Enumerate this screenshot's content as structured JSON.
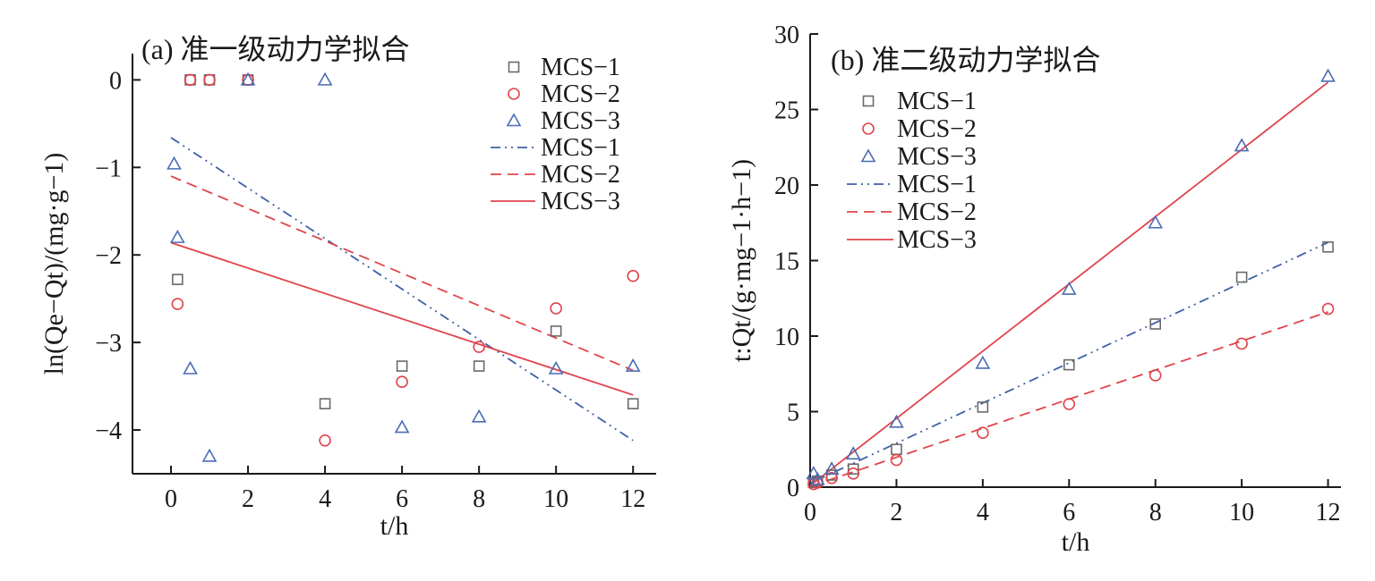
{
  "colors": {
    "MCS-1": "#6a6a6a",
    "MCS-2": "#e0444c",
    "MCS-3": "#4a6cb4",
    "fit-MCS-1": "#3f5fa6",
    "fit-MCS-2": "#e0444c",
    "fit-MCS-3": "#e0444c"
  },
  "chart_data": [
    {
      "type": "scatter",
      "title": "(a) 准一级动力学拟合",
      "xlabel": "t/h",
      "ylabel": "ln(Qe−Qt)/(mg·g−1)",
      "xlim": [
        -1,
        12.6
      ],
      "ylim": [
        -4.5,
        0.3
      ],
      "xticks": [
        0,
        2,
        4,
        6,
        8,
        10,
        12
      ],
      "xtick_labels": [
        "0",
        "2",
        "4",
        "6",
        "8",
        "10",
        "12"
      ],
      "yticks": [
        0,
        -1,
        -2,
        -3,
        -4
      ],
      "ytick_labels": [
        "0",
        "−1",
        "−2",
        "−3",
        "−4"
      ],
      "legend_position": "top-right",
      "series": [
        {
          "name": "MCS−1",
          "marker": "square",
          "color": "#6a6a6a",
          "x": [
            0.17,
            0.5,
            1,
            2,
            4,
            6,
            8,
            10,
            12
          ],
          "y": [
            -2.28,
            0,
            0,
            0,
            -3.7,
            -3.27,
            -3.27,
            -2.87,
            -3.7
          ]
        },
        {
          "name": "MCS−2",
          "marker": "circle",
          "color": "#e0444c",
          "x": [
            0.17,
            0.5,
            1,
            2,
            4,
            6,
            8,
            10,
            12
          ],
          "y": [
            -2.56,
            0,
            0,
            0,
            -4.12,
            -3.45,
            -3.05,
            -2.61,
            -2.24
          ]
        },
        {
          "name": "MCS−3",
          "marker": "triangle",
          "color": "#4a6cb4",
          "x": [
            0.08,
            0.17,
            0.5,
            1,
            2,
            4,
            6,
            8,
            10,
            12
          ],
          "y": [
            -0.96,
            -1.8,
            -3.3,
            -4.3,
            0,
            0,
            -3.97,
            -3.85,
            -3.3,
            -3.27
          ]
        }
      ],
      "fits": [
        {
          "name": "MCS−1",
          "style": "dashdotdot",
          "color": "#3f5fa6",
          "x": [
            0,
            12
          ],
          "y": [
            -0.66,
            -4.12
          ]
        },
        {
          "name": "MCS−2",
          "style": "dashed",
          "color": "#e0444c",
          "x": [
            0,
            12
          ],
          "y": [
            -1.1,
            -3.32
          ]
        },
        {
          "name": "MCS−3",
          "style": "solid",
          "color": "#e0444c",
          "x": [
            0,
            12
          ],
          "y": [
            -1.86,
            -3.6
          ]
        }
      ]
    },
    {
      "type": "scatter",
      "title": "(b) 准二级动力学拟合",
      "xlabel": "t/h",
      "ylabel": "t:Qt/(g·mg−1·h−1)",
      "xlim": [
        0,
        12.3
      ],
      "ylim": [
        0,
        30
      ],
      "xticks": [
        0,
        2,
        4,
        6,
        8,
        10,
        12
      ],
      "xtick_labels": [
        "0",
        "2",
        "4",
        "6",
        "8",
        "10",
        "12"
      ],
      "yticks": [
        0,
        5,
        10,
        15,
        20,
        25,
        30
      ],
      "ytick_labels": [
        "0",
        "5",
        "10",
        "15",
        "20",
        "25",
        "30"
      ],
      "legend_position": "top-left",
      "series": [
        {
          "name": "MCS−1",
          "marker": "square",
          "color": "#6a6a6a",
          "x": [
            0.08,
            0.17,
            0.5,
            1,
            2,
            4,
            6,
            8,
            10,
            12
          ],
          "y": [
            0.3,
            0.4,
            0.8,
            1.2,
            2.5,
            5.3,
            8.1,
            10.8,
            13.9,
            15.9
          ]
        },
        {
          "name": "MCS−2",
          "marker": "circle",
          "color": "#e0444c",
          "x": [
            0.08,
            0.17,
            0.5,
            1,
            2,
            4,
            6,
            8,
            10,
            12
          ],
          "y": [
            0.2,
            0.3,
            0.6,
            0.9,
            1.8,
            3.6,
            5.5,
            7.4,
            9.5,
            11.8
          ]
        },
        {
          "name": "MCS−3",
          "marker": "triangle",
          "color": "#4a6cb4",
          "x": [
            0.08,
            0.17,
            0.5,
            1,
            2,
            4,
            6,
            8,
            10,
            12
          ],
          "y": [
            0.9,
            0.5,
            1.2,
            2.2,
            4.3,
            8.2,
            13.1,
            17.5,
            22.6,
            27.2
          ]
        }
      ],
      "fits": [
        {
          "name": "MCS−1",
          "style": "dashdotdot",
          "color": "#3f5fa6",
          "x": [
            0,
            12
          ],
          "y": [
            0.25,
            16.2
          ]
        },
        {
          "name": "MCS−2",
          "style": "dashed",
          "color": "#e0444c",
          "x": [
            0,
            12
          ],
          "y": [
            0.05,
            11.6
          ]
        },
        {
          "name": "MCS−3",
          "style": "solid",
          "color": "#e0444c",
          "x": [
            0,
            12
          ],
          "y": [
            0.1,
            26.8
          ]
        }
      ]
    }
  ]
}
